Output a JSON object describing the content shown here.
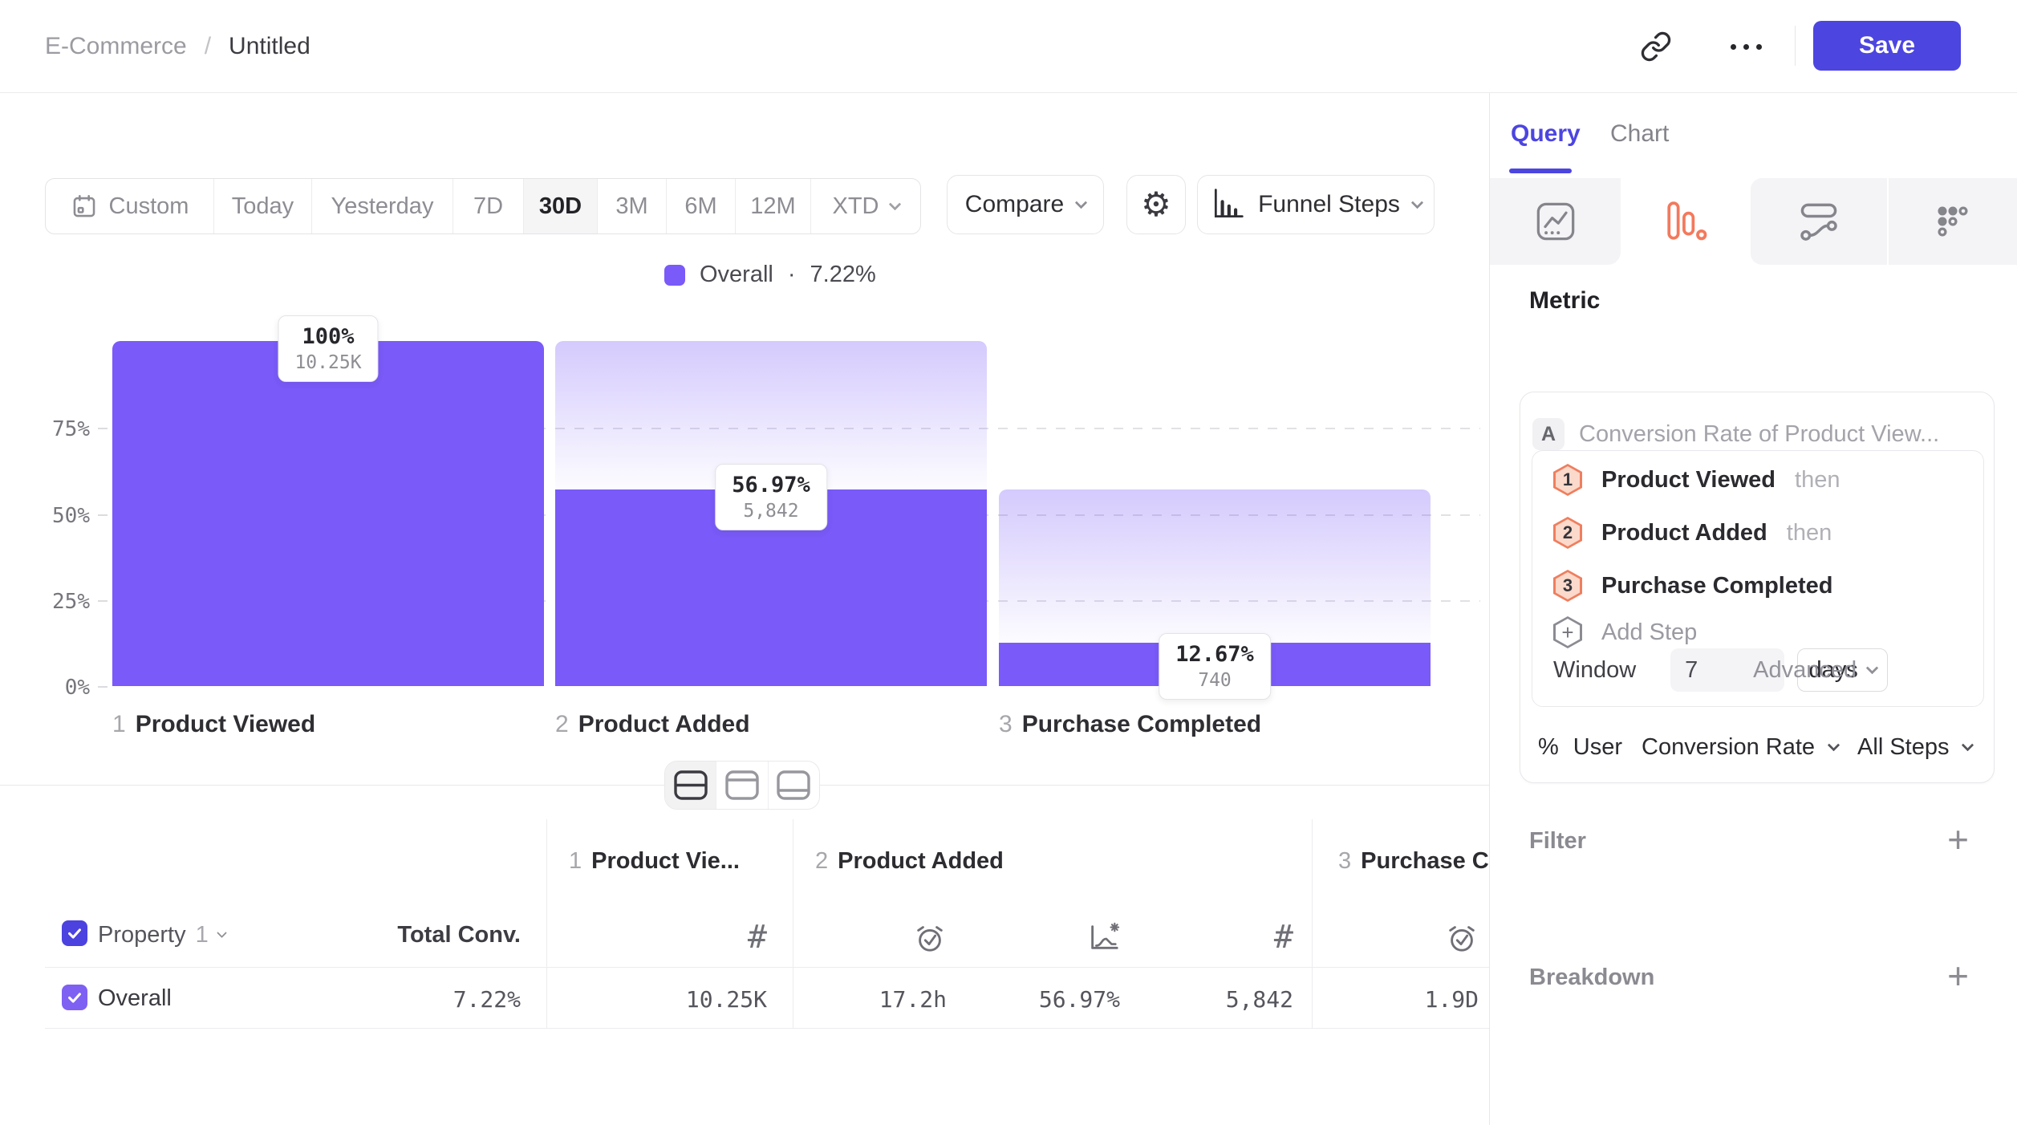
{
  "topbar": {
    "project": "E-Commerce",
    "separator": "/",
    "title": "Untitled",
    "save": "Save"
  },
  "toolbar": {
    "ranges": [
      {
        "label": "Custom"
      },
      {
        "label": "Today"
      },
      {
        "label": "Yesterday"
      },
      {
        "label": "7D"
      },
      {
        "label": "30D"
      },
      {
        "label": "3M"
      },
      {
        "label": "6M"
      },
      {
        "label": "12M"
      },
      {
        "label": "XTD"
      }
    ],
    "selected_range": "30D",
    "compare": "Compare",
    "chart_type": "Funnel Steps"
  },
  "chart_data": {
    "type": "funnel",
    "legend": {
      "name": "Overall",
      "separator": "·",
      "value": "7.22%",
      "color": "#7a5af8"
    },
    "y_ticks": [
      "75%",
      "50%",
      "25%",
      "0%"
    ],
    "ylim": [
      0,
      100
    ],
    "grid": "dashed-horizontal-25-50-75",
    "bar_color": "#7a5af8",
    "steps": [
      {
        "index": "1",
        "name": "Product Viewed",
        "conversion_pct": 100,
        "pct_label": "100%",
        "count": 10250,
        "count_label": "10.25K"
      },
      {
        "index": "2",
        "name": "Product Added",
        "conversion_pct": 56.97,
        "pct_label": "56.97%",
        "count": 5842,
        "count_label": "5,842"
      },
      {
        "index": "3",
        "name": "Purchase Completed",
        "conversion_pct": 12.67,
        "pct_label": "12.67%",
        "count": 740,
        "count_label": "740"
      }
    ]
  },
  "table": {
    "header": {
      "property": "Property",
      "property_num": "1",
      "total": "Total Conv."
    },
    "groups": [
      {
        "num": "1",
        "name": "Product Vie..."
      },
      {
        "num": "2",
        "name": "Product Added"
      },
      {
        "num": "3",
        "name": "Purchase Completed"
      }
    ],
    "row": {
      "name": "Overall",
      "total": "7.22%",
      "values": [
        "10.25K",
        "17.2h",
        "56.97%",
        "5,842",
        "1.9D"
      ]
    }
  },
  "panel": {
    "tabs": {
      "query": "Query",
      "chart": "Chart"
    },
    "metric_heading": "Metric",
    "metric": {
      "badge": "A",
      "title": "Conversion Rate of Product View...",
      "steps": [
        {
          "num": "1",
          "name": "Product Viewed",
          "conj": "then"
        },
        {
          "num": "2",
          "name": "Product Added",
          "conj": "then"
        },
        {
          "num": "3",
          "name": "Purchase Completed",
          "conj": ""
        }
      ],
      "add_step": "Add Step",
      "window_label": "Window",
      "window_value": "7",
      "window_unit": "days",
      "advanced": "Advanced",
      "measure": {
        "symbol": "%",
        "entity": "User",
        "metric": "Conversion Rate",
        "scope": "All Steps"
      }
    },
    "filter": "Filter",
    "breakdown": "Breakdown",
    "add_icon": "+"
  }
}
